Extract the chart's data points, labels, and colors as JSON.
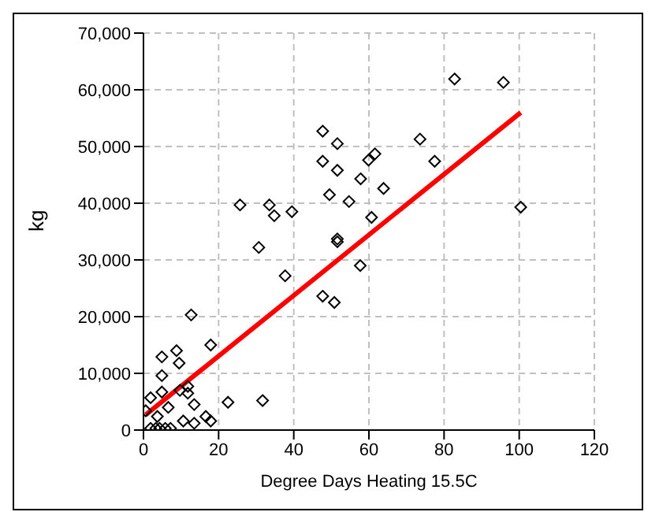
{
  "chart_data": {
    "type": "scatter",
    "xlabel": "Degree Days Heating 15.5C",
    "ylabel": "kg",
    "xlim": [
      0,
      120
    ],
    "xticks": [
      0,
      20,
      40,
      60,
      80,
      100,
      120
    ],
    "ylim": [
      0,
      70000
    ],
    "yticks": [
      {
        "value": 0,
        "label": "0"
      },
      {
        "value": 10000,
        "label": "10,000"
      },
      {
        "value": 20000,
        "label": "20,000"
      },
      {
        "value": 30000,
        "label": "30,000"
      },
      {
        "value": 40000,
        "label": "40,000"
      },
      {
        "value": 50000,
        "label": "50,000"
      },
      {
        "value": 60000,
        "label": "60,000"
      },
      {
        "value": 70000,
        "label": "70,000"
      }
    ],
    "grid": true,
    "marker": "diamond",
    "series": [
      {
        "color": "#000000",
        "x": [
          0.6,
          1.9,
          4.9,
          4.9,
          4.9,
          6.6,
          8.8,
          9.5,
          9.7,
          11.8,
          11.8,
          12.7,
          13.5,
          10.6,
          13.5,
          16.6,
          17.9,
          17.9,
          22.5,
          31.7,
          25.7,
          30.7,
          33.5,
          34.8,
          39.5,
          37.7,
          47.7,
          51.6,
          47.7,
          51.6,
          49.5,
          54.7,
          57.8,
          59.9,
          61.6,
          63.9,
          60.7,
          51.6,
          51.6,
          57.7,
          47.7,
          50.8,
          82.8,
          95.8,
          73.6,
          77.5,
          100.4,
          1.9,
          3.3,
          4.3,
          5.8,
          7.2,
          3.7
        ],
        "values": [
          3400,
          5700,
          12900,
          9600,
          6700,
          4000,
          14000,
          11800,
          7000,
          7700,
          6500,
          20300,
          4500,
          1600,
          1200,
          2400,
          1600,
          15000,
          4900,
          5200,
          39700,
          32200,
          39700,
          37800,
          38500,
          27200,
          52700,
          50500,
          47400,
          45800,
          41500,
          40300,
          44300,
          47600,
          48700,
          42600,
          37500,
          33700,
          33200,
          29000,
          23600,
          22500,
          61900,
          61300,
          51300,
          47400,
          39300,
          300,
          300,
          300,
          300,
          300,
          2400
        ]
      },
      {
        "type": "line",
        "color": "#ff0000",
        "marker": "none",
        "x": [
          0.6,
          100.4
        ],
        "values": [
          2700,
          56000
        ]
      }
    ]
  }
}
